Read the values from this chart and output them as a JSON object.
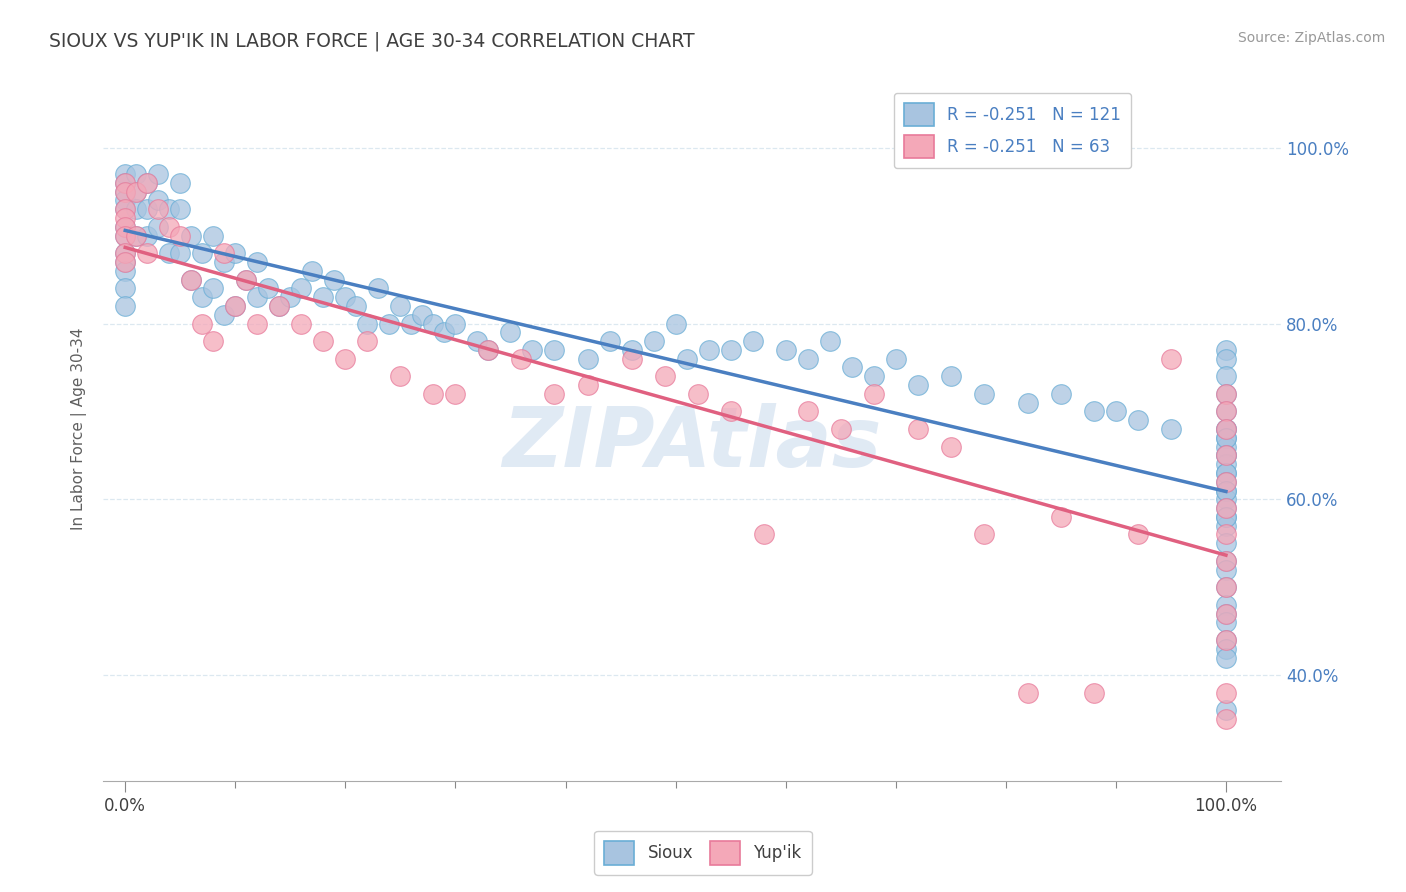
{
  "title": "SIOUX VS YUP'IK IN LABOR FORCE | AGE 30-34 CORRELATION CHART",
  "source_text": "Source: ZipAtlas.com",
  "ylabel": "In Labor Force | Age 30-34",
  "xlim": [
    -0.02,
    1.05
  ],
  "ylim": [
    0.28,
    1.08
  ],
  "yticks_right": [
    0.4,
    0.6,
    0.8,
    1.0
  ],
  "ytick_labels_right": [
    "40.0%",
    "60.0%",
    "80.0%",
    "100.0%"
  ],
  "legend_blue_label": "R = -0.251   N = 121",
  "legend_pink_label": "R = -0.251   N = 63",
  "legend_sioux": "Sioux",
  "legend_yupik": "Yup'ik",
  "blue_fill": "#a8c4e0",
  "pink_fill": "#f4a8b8",
  "blue_edge": "#6aaed6",
  "pink_edge": "#e87a9a",
  "blue_line": "#4a7fc1",
  "pink_line": "#e06080",
  "title_color": "#404040",
  "axis_color": "#888888",
  "watermark_color": "#ccdcee",
  "background_color": "#ffffff",
  "grid_color": "#dce8f0",
  "blue_x": [
    0.0,
    0.0,
    0.0,
    0.0,
    0.0,
    0.0,
    0.0,
    0.0,
    0.0,
    0.0,
    0.0,
    0.0,
    0.01,
    0.01,
    0.01,
    0.01,
    0.02,
    0.02,
    0.02,
    0.03,
    0.03,
    0.03,
    0.04,
    0.04,
    0.05,
    0.05,
    0.05,
    0.06,
    0.06,
    0.07,
    0.07,
    0.08,
    0.08,
    0.09,
    0.09,
    0.1,
    0.1,
    0.11,
    0.12,
    0.12,
    0.13,
    0.14,
    0.15,
    0.16,
    0.17,
    0.18,
    0.19,
    0.2,
    0.21,
    0.22,
    0.23,
    0.24,
    0.25,
    0.26,
    0.27,
    0.28,
    0.29,
    0.3,
    0.32,
    0.33,
    0.35,
    0.37,
    0.39,
    0.42,
    0.44,
    0.46,
    0.48,
    0.5,
    0.51,
    0.53,
    0.55,
    0.57,
    0.6,
    0.62,
    0.64,
    0.66,
    0.68,
    0.7,
    0.72,
    0.75,
    0.78,
    0.82,
    0.85,
    0.88,
    0.9,
    0.92,
    0.95,
    1.0,
    1.0,
    1.0,
    1.0,
    1.0,
    1.0,
    1.0,
    1.0,
    1.0,
    1.0,
    1.0,
    1.0,
    1.0,
    1.0,
    1.0,
    1.0,
    1.0,
    1.0,
    1.0,
    1.0,
    1.0,
    1.0,
    1.0,
    1.0,
    1.0,
    1.0,
    1.0,
    1.0,
    1.0,
    1.0,
    1.0,
    1.0,
    1.0,
    1.0
  ],
  "blue_y": [
    0.97,
    0.96,
    0.95,
    0.94,
    0.93,
    0.91,
    0.9,
    0.88,
    0.87,
    0.86,
    0.84,
    0.82,
    0.97,
    0.95,
    0.93,
    0.9,
    0.96,
    0.93,
    0.9,
    0.97,
    0.94,
    0.91,
    0.93,
    0.88,
    0.96,
    0.93,
    0.88,
    0.9,
    0.85,
    0.88,
    0.83,
    0.9,
    0.84,
    0.87,
    0.81,
    0.88,
    0.82,
    0.85,
    0.87,
    0.83,
    0.84,
    0.82,
    0.83,
    0.84,
    0.86,
    0.83,
    0.85,
    0.83,
    0.82,
    0.8,
    0.84,
    0.8,
    0.82,
    0.8,
    0.81,
    0.8,
    0.79,
    0.8,
    0.78,
    0.77,
    0.79,
    0.77,
    0.77,
    0.76,
    0.78,
    0.77,
    0.78,
    0.8,
    0.76,
    0.77,
    0.77,
    0.78,
    0.77,
    0.76,
    0.78,
    0.75,
    0.74,
    0.76,
    0.73,
    0.74,
    0.72,
    0.71,
    0.72,
    0.7,
    0.7,
    0.69,
    0.68,
    0.77,
    0.76,
    0.74,
    0.72,
    0.7,
    0.68,
    0.67,
    0.66,
    0.65,
    0.64,
    0.63,
    0.61,
    0.6,
    0.58,
    0.57,
    0.55,
    0.53,
    0.52,
    0.5,
    0.48,
    0.47,
    0.46,
    0.44,
    0.43,
    0.42,
    0.36,
    0.68,
    0.67,
    0.65,
    0.63,
    0.62,
    0.61,
    0.59,
    0.58
  ],
  "pink_x": [
    0.0,
    0.0,
    0.0,
    0.0,
    0.0,
    0.0,
    0.0,
    0.0,
    0.01,
    0.01,
    0.02,
    0.02,
    0.03,
    0.04,
    0.05,
    0.06,
    0.07,
    0.08,
    0.09,
    0.1,
    0.11,
    0.12,
    0.14,
    0.16,
    0.18,
    0.2,
    0.22,
    0.25,
    0.28,
    0.3,
    0.33,
    0.36,
    0.39,
    0.42,
    0.46,
    0.49,
    0.52,
    0.55,
    0.58,
    0.62,
    0.65,
    0.68,
    0.72,
    0.75,
    0.78,
    0.82,
    0.85,
    0.88,
    0.92,
    0.95,
    1.0,
    1.0,
    1.0,
    1.0,
    1.0,
    1.0,
    1.0,
    1.0,
    1.0,
    1.0,
    1.0,
    1.0,
    1.0
  ],
  "pink_y": [
    0.96,
    0.95,
    0.93,
    0.92,
    0.91,
    0.9,
    0.88,
    0.87,
    0.95,
    0.9,
    0.96,
    0.88,
    0.93,
    0.91,
    0.9,
    0.85,
    0.8,
    0.78,
    0.88,
    0.82,
    0.85,
    0.8,
    0.82,
    0.8,
    0.78,
    0.76,
    0.78,
    0.74,
    0.72,
    0.72,
    0.77,
    0.76,
    0.72,
    0.73,
    0.76,
    0.74,
    0.72,
    0.7,
    0.56,
    0.7,
    0.68,
    0.72,
    0.68,
    0.66,
    0.56,
    0.38,
    0.58,
    0.38,
    0.56,
    0.76,
    0.72,
    0.7,
    0.68,
    0.65,
    0.62,
    0.59,
    0.56,
    0.53,
    0.5,
    0.47,
    0.44,
    0.38,
    0.35
  ]
}
